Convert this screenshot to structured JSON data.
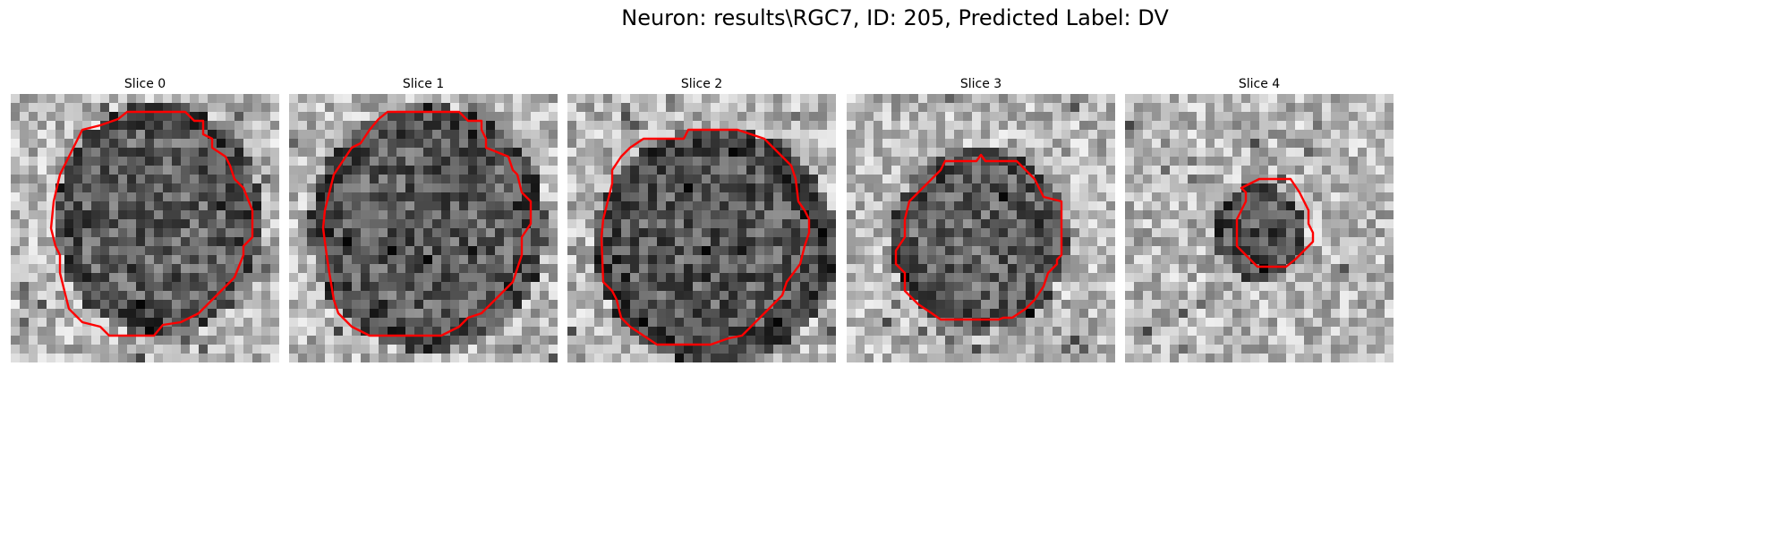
{
  "figure": {
    "title": "Neuron: results\\RGC7, ID: 205, Predicted Label: DV"
  },
  "panels": [
    {
      "title": "Slice 0"
    },
    {
      "title": "Slice 1"
    },
    {
      "title": "Slice 2"
    },
    {
      "title": "Slice 3"
    },
    {
      "title": "Slice 4"
    }
  ],
  "colors": {
    "contour": "#ff0000",
    "background": "#ffffff"
  }
}
